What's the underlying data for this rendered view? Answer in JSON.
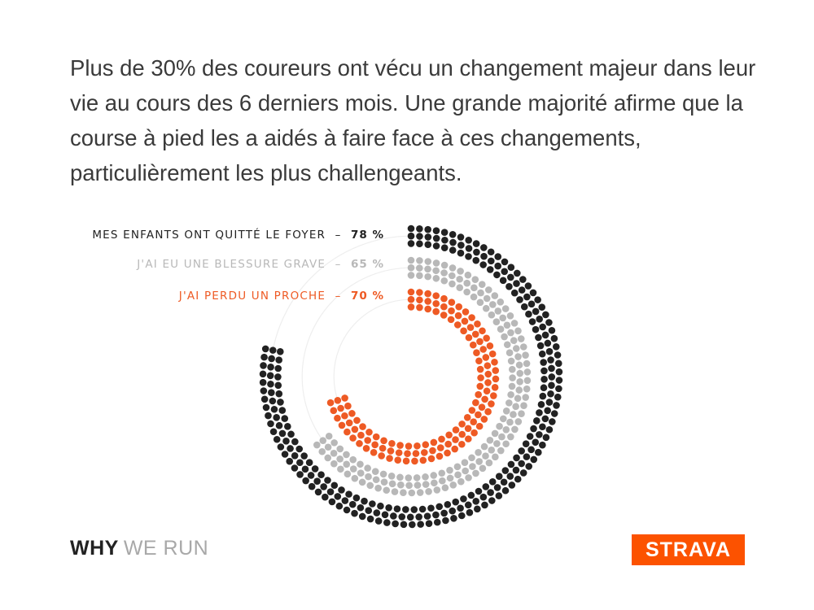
{
  "headline": "Plus de 30% des coureurs ont vécu un changement majeur dans leur vie au cours des 6 derniers mois. Une grande majorité afirme que la course à pied les a aidés à faire face à ces changements, particulièrement les plus challengeants.",
  "chart_data": {
    "type": "radial-bar",
    "series": [
      {
        "label": "MES ENFANTS ONT QUITTÉ LE FOYER",
        "value": 78,
        "value_text": "78 %",
        "color": "#222222"
      },
      {
        "label": "J'AI EU UNE BLESSURE GRAVE",
        "value": 65,
        "value_text": "65 %",
        "color": "#b8b8b8"
      },
      {
        "label": "J'AI PERDU UN PROCHE",
        "value": 70,
        "value_text": "70 %",
        "color": "#ee5a24"
      }
    ],
    "separator": "–",
    "max": 100,
    "track_color": "#eeeeee"
  },
  "brand": {
    "strong": "WHY",
    "light": "WE RUN",
    "strong_color": "#222222",
    "light_color": "#a8a8a8"
  },
  "logo": {
    "text": "STRAVA",
    "background": "#fc5200"
  }
}
